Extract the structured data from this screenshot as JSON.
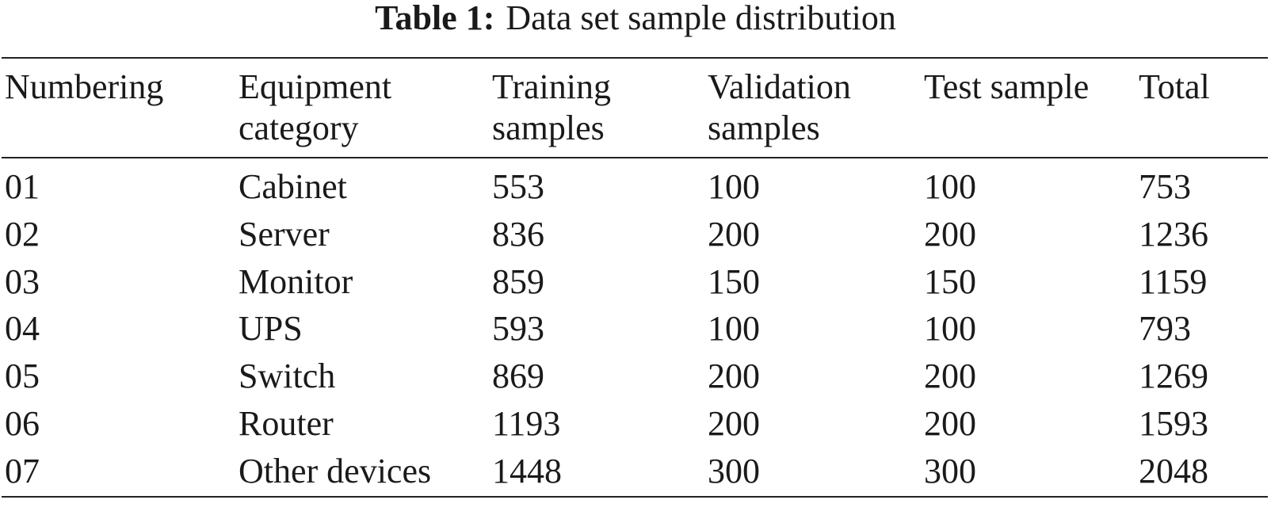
{
  "caption": {
    "label": "Table 1:",
    "title": "Data set sample distribution"
  },
  "columns": [
    "Numbering",
    "Equipment\ncategory",
    "Training\nsamples",
    "Validation\nsamples",
    "Test sample",
    "Total"
  ],
  "rows": [
    [
      "01",
      "Cabinet",
      "553",
      "100",
      "100",
      "753"
    ],
    [
      "02",
      "Server",
      "836",
      "200",
      "200",
      "1236"
    ],
    [
      "03",
      "Monitor",
      "859",
      "150",
      "150",
      "1159"
    ],
    [
      "04",
      "UPS",
      "593",
      "100",
      "100",
      "793"
    ],
    [
      "05",
      "Switch",
      "869",
      "200",
      "200",
      "1269"
    ],
    [
      "06",
      "Router",
      "1193",
      "200",
      "200",
      "1593"
    ],
    [
      "07",
      "Other devices",
      "1448",
      "300",
      "300",
      "2048"
    ]
  ]
}
